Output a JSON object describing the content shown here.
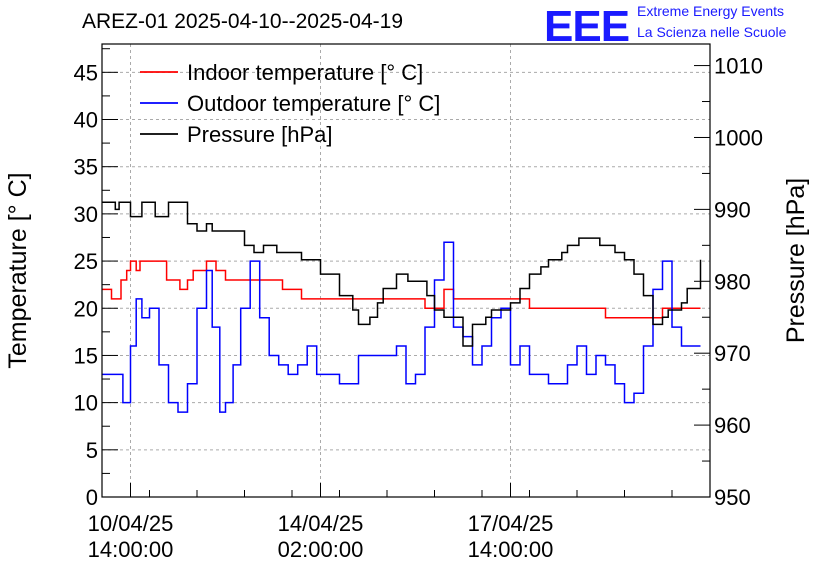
{
  "title": "AREZ-01 2025-04-10--2025-04-19",
  "logo": {
    "text": "EEE",
    "line1": "Extreme Energy Events",
    "line2": "La Scienza nelle Scuole",
    "color": "#1a1aff"
  },
  "chart_data": {
    "type": "line",
    "ylabel": "Temperature [° C]",
    "ylabel_right": "Pressure [hPa]",
    "ylim": [
      0,
      48
    ],
    "ylim_right": [
      950,
      1013
    ],
    "yticks": [
      0,
      5,
      10,
      15,
      20,
      25,
      30,
      35,
      40,
      45
    ],
    "yticks_right": [
      950,
      960,
      970,
      980,
      990,
      1000,
      1010
    ],
    "xlim": [
      -1.5,
      30.5
    ],
    "xticks": [
      {
        "x": 0,
        "line1": "10/04/25",
        "line2": "14:00:00"
      },
      {
        "x": 10,
        "line1": "14/04/25",
        "line2": "02:00:00"
      },
      {
        "x": 20,
        "line1": "17/04/25",
        "line2": "14:00:00"
      }
    ],
    "grid": true,
    "legend_position": "top-left",
    "series": [
      {
        "name": "Indoor temperature [° C]",
        "color": "#ff0000",
        "axis": "left",
        "x": [
          -1.5,
          -1.1,
          -1.0,
          -0.5,
          -0.2,
          0,
          0.3,
          0.5,
          0.8,
          1.5,
          1.9,
          2.3,
          2.6,
          3.0,
          3.3,
          4.0,
          4.5,
          5,
          7,
          8,
          9,
          10,
          11,
          12,
          13,
          14,
          15,
          15.5,
          16,
          16.5,
          17,
          17.5,
          18,
          19,
          20,
          21,
          22,
          23,
          24,
          25,
          26,
          27,
          28,
          29,
          30
        ],
        "y": [
          22,
          22,
          21,
          23,
          24,
          25,
          24,
          25,
          25,
          25,
          23,
          23,
          22,
          23,
          24,
          25,
          24,
          23,
          23,
          22,
          21,
          21,
          21,
          21,
          21,
          21,
          21,
          20,
          20,
          22,
          21,
          21,
          21,
          21,
          21,
          20,
          20,
          20,
          20,
          19,
          19,
          19,
          20,
          20,
          20
        ]
      },
      {
        "name": "Outdoor temperature [° C]",
        "color": "#0000ff",
        "axis": "left",
        "x": [
          -1.5,
          -0.8,
          -0.4,
          0,
          0.3,
          0.6,
          1,
          1.5,
          2,
          2.5,
          3,
          3.5,
          4,
          4.3,
          4.7,
          5,
          5.4,
          5.8,
          6.3,
          6.8,
          7.3,
          7.8,
          8.3,
          8.8,
          9.3,
          9.8,
          10.3,
          11,
          12,
          13,
          13.5,
          14,
          14.5,
          15,
          15.5,
          16,
          16.5,
          17,
          17.5,
          18,
          18.5,
          19,
          19.5,
          20,
          20.5,
          21,
          22,
          23,
          23.5,
          24,
          24.5,
          25,
          25.5,
          26,
          26.5,
          27,
          27.5,
          28,
          28.5,
          29,
          29.5,
          30
        ],
        "y": [
          13,
          13,
          10,
          16,
          21,
          19,
          20,
          14,
          10,
          9,
          12,
          20,
          24,
          18,
          9,
          10,
          14,
          20,
          25,
          19,
          15,
          14,
          13,
          14,
          16,
          13,
          13,
          12,
          15,
          15,
          15,
          16,
          12,
          13,
          18,
          23,
          27,
          18,
          17,
          14,
          16,
          19,
          20,
          14,
          16,
          13,
          12,
          14,
          16,
          13,
          15,
          14,
          12,
          10,
          11,
          16,
          22,
          25,
          18,
          16,
          16,
          16
        ]
      },
      {
        "name": "Pressure [hPa]",
        "color": "#000000",
        "axis": "right",
        "x": [
          -1.5,
          -0.8,
          -0.6,
          0,
          0.6,
          1,
          1.3,
          2,
          2.6,
          3,
          3.5,
          4,
          4.3,
          5,
          6,
          6.5,
          7,
          7.7,
          8.4,
          9,
          9.6,
          10,
          10.3,
          11,
          11.7,
          12,
          12.6,
          13,
          13.3,
          14,
          14.6,
          15,
          15.6,
          16,
          16.5,
          17,
          17.5,
          18,
          18.7,
          19,
          19.4,
          20,
          20.5,
          21,
          21.6,
          22,
          22.7,
          23,
          23.6,
          24,
          24.7,
          25,
          25.5,
          26,
          26.5,
          27,
          27.5,
          28,
          28.3,
          29,
          29.3,
          30
        ],
        "y": [
          991,
          990,
          991,
          989,
          991,
          991,
          989,
          991,
          991,
          988,
          987,
          988,
          987,
          987,
          985,
          984,
          985,
          984,
          984,
          983,
          983,
          981,
          981,
          978,
          976,
          974,
          975,
          977,
          979,
          981,
          980,
          980,
          978,
          976,
          975,
          975,
          971,
          974,
          975,
          976,
          976,
          977,
          979,
          981,
          982,
          983,
          984,
          985,
          986,
          986,
          985,
          985,
          984,
          983,
          981,
          978,
          974,
          975,
          976,
          977,
          979,
          983
        ]
      }
    ]
  }
}
